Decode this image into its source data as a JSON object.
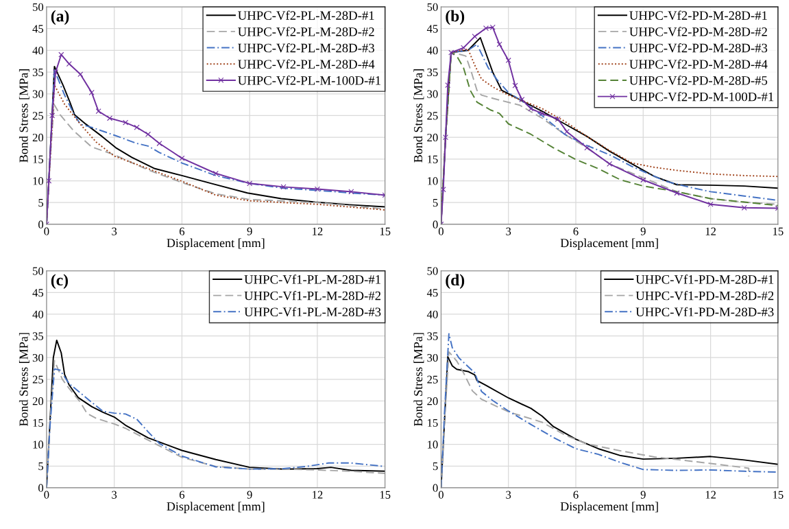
{
  "chart_data": [
    {
      "type": "line",
      "annotations": [
        "(a)"
      ],
      "xlabel": "Displacement [mm]",
      "ylabel": "Bond Stress [MPa]",
      "xlim": [
        0,
        15
      ],
      "ylim": [
        0,
        50
      ],
      "xticks": [
        0,
        3,
        6,
        9,
        12,
        15
      ],
      "yticks": [
        0,
        5,
        10,
        15,
        20,
        25,
        30,
        35,
        40,
        45,
        50
      ],
      "grid": true,
      "legend": "top right",
      "series": [
        {
          "name": "UHPC-Vf2-PL-M-28D-#1",
          "color": "#000000",
          "line_style": "solid",
          "x": [
            0,
            0.15,
            0.35,
            0.73,
            1.04,
            1.24,
            1.75,
            2.46,
            3.07,
            3.78,
            4.8,
            6,
            7.3,
            8.9,
            10.4,
            11.9,
            13.4,
            15
          ],
          "values": [
            0,
            15,
            36.3,
            32,
            28,
            25.2,
            23,
            20.2,
            17.6,
            15.4,
            12.8,
            11.2,
            9.4,
            7.2,
            5.9,
            5.1,
            4.5,
            4.0
          ]
        },
        {
          "name": "UHPC-Vf2-PL-M-28D-#2",
          "color": "#a6a6a6",
          "line_style": "dashed",
          "x": [
            0,
            0.15,
            0.33,
            0.6,
            1.2,
            2,
            3,
            4.5,
            6,
            7.5,
            9,
            12,
            15
          ],
          "values": [
            0,
            14,
            27.6,
            25.2,
            21.5,
            17.8,
            16,
            12.5,
            9.6,
            7,
            5.7,
            5,
            3.5
          ]
        },
        {
          "name": "UHPC-Vf2-PL-M-28D-#3",
          "color": "#4472c4",
          "line_style": "dashdot",
          "x": [
            0,
            0.15,
            0.35,
            0.8,
            1.2,
            1.5,
            2,
            3,
            4,
            4.5,
            5,
            6,
            7.5,
            9,
            10.5,
            12,
            13.5,
            15
          ],
          "values": [
            0,
            15,
            35.5,
            29.7,
            25.5,
            23,
            22.3,
            20.5,
            18.6,
            18,
            16.5,
            14.1,
            11.2,
            9.4,
            8.3,
            7.8,
            7.2,
            6.7
          ]
        },
        {
          "name": "UHPC-Vf2-PL-M-28D-#4",
          "color": "#a0421a",
          "line_style": "dotted",
          "x": [
            0,
            0.15,
            0.35,
            0.8,
            1.5,
            2.2,
            3,
            4.5,
            6,
            7.5,
            9,
            12,
            15
          ],
          "values": [
            0,
            14,
            32,
            27.6,
            23,
            18.9,
            15.7,
            12.8,
            9.9,
            6.7,
            5.4,
            4.6,
            3.3
          ]
        },
        {
          "name": "UHPC-Vf2-PL-M-100D-#1",
          "color": "#7030a0",
          "line_style": "solid",
          "marker": "cross",
          "x": [
            0,
            0.1,
            0.25,
            0.4,
            0.65,
            1,
            1.5,
            2,
            2.3,
            2.8,
            3.5,
            4,
            4.5,
            5,
            6,
            7.5,
            9,
            10.5,
            12,
            13.5,
            15
          ],
          "values": [
            0,
            10,
            25,
            35,
            39,
            36.9,
            34.5,
            30.3,
            26,
            24.4,
            23.4,
            22.3,
            20.7,
            18.6,
            15.2,
            11.7,
            9.4,
            8.6,
            8.1,
            7.5,
            6.7
          ]
        }
      ]
    },
    {
      "type": "line",
      "annotations": [
        "(b)"
      ],
      "xlabel": "Displacement [mm]",
      "ylabel": "Bond Stress [MPa]",
      "xlim": [
        0,
        15
      ],
      "ylim": [
        0,
        50
      ],
      "xticks": [
        0,
        3,
        6,
        9,
        12,
        15
      ],
      "yticks": [
        0,
        5,
        10,
        15,
        20,
        25,
        30,
        35,
        40,
        45,
        50
      ],
      "grid": true,
      "legend": "top right",
      "series": [
        {
          "name": "UHPC-Vf2-PD-M-28D-#1",
          "color": "#000000",
          "line_style": "solid",
          "x": [
            0,
            0.2,
            0.45,
            1.2,
            1.75,
            2.3,
            2.7,
            3.2,
            3.6,
            4.5,
            5.5,
            6.5,
            7.5,
            8.5,
            9.5,
            10.5,
            12,
            13.5,
            15
          ],
          "values": [
            0,
            20,
            39.5,
            40,
            42.9,
            35,
            30.8,
            29.5,
            28.4,
            26,
            23.1,
            20.2,
            16.8,
            13.9,
            11,
            9.1,
            9,
            8.8,
            8.3
          ]
        },
        {
          "name": "UHPC-Vf2-PD-M-28D-#2",
          "color": "#a6a6a6",
          "line_style": "dashed",
          "x": [
            0,
            0.2,
            0.45,
            0.9,
            1.1,
            1.35,
            1.6,
            1.8,
            2.5,
            3.5,
            4.5,
            5.5,
            6.5,
            7.5,
            9,
            10.5,
            12,
            13.5,
            15
          ],
          "values": [
            0,
            20,
            39.5,
            39,
            38.7,
            35,
            30.8,
            29.7,
            28.7,
            27.4,
            24.4,
            20.7,
            17.6,
            13.9,
            10.7,
            7.5,
            5.9,
            5.1,
            4.6
          ]
        },
        {
          "name": "UHPC-Vf2-PD-M-28D-#3",
          "color": "#4472c4",
          "line_style": "dashdot",
          "x": [
            0,
            0.2,
            0.45,
            1.2,
            1.6,
            2.1,
            2.5,
            3,
            3.5,
            4.5,
            5.5,
            6.5,
            7.5,
            8.5,
            10,
            11,
            12,
            13.5,
            15
          ],
          "values": [
            0,
            20,
            39.5,
            40,
            41.4,
            36,
            33.2,
            30.3,
            28.7,
            25,
            20.7,
            18.1,
            16,
            13.3,
            9.9,
            8.6,
            7.5,
            6.5,
            5.5
          ]
        },
        {
          "name": "UHPC-Vf2-PD-M-28D-#4",
          "color": "#a0421a",
          "line_style": "dotted",
          "x": [
            0,
            0.2,
            0.45,
            1.2,
            1.5,
            1.8,
            2.3,
            3,
            3.5,
            4.5,
            5.5,
            6.5,
            7.5,
            8.5,
            9.5,
            10.5,
            12,
            13.5,
            15
          ],
          "values": [
            0,
            20,
            39.5,
            40.3,
            36.6,
            33.4,
            31.6,
            29.7,
            28.7,
            26.6,
            23.7,
            20.2,
            17,
            14.1,
            13.1,
            12.4,
            11.6,
            11.2,
            11
          ]
        },
        {
          "name": "UHPC-Vf2-PD-M-28D-#5",
          "color": "#548235",
          "line_style": "dashed",
          "x": [
            0,
            0.2,
            0.45,
            0.7,
            1,
            1.3,
            1.6,
            2.2,
            2.6,
            3,
            4,
            5,
            6,
            7,
            8,
            9,
            10.5,
            12,
            13.5,
            15
          ],
          "values": [
            0,
            20,
            39.5,
            38.7,
            36,
            30.8,
            28.1,
            26.3,
            25.5,
            23.1,
            20.7,
            17.6,
            14.9,
            12.8,
            10.2,
            8.8,
            7.5,
            5.9,
            5.1,
            4.3
          ]
        },
        {
          "name": "UHPC-Vf2-PD-M-100D-#1",
          "color": "#7030a0",
          "line_style": "solid",
          "marker": "cross",
          "x": [
            0,
            0.1,
            0.2,
            0.3,
            0.45,
            1,
            1.5,
            2,
            2.3,
            2.6,
            3,
            3.3,
            3.6,
            4,
            4.5,
            5.2,
            5.6,
            6.5,
            7.5,
            9,
            10.5,
            12,
            13.5,
            15
          ],
          "values": [
            0,
            8,
            20,
            32,
            39.5,
            40.6,
            43.2,
            45.1,
            45.3,
            41.4,
            37.7,
            31.9,
            28.7,
            26.6,
            25.5,
            24.2,
            21.3,
            17.6,
            13.9,
            10.2,
            7.2,
            4.6,
            3.8,
            3.7
          ]
        }
      ]
    },
    {
      "type": "line",
      "annotations": [
        "(c)"
      ],
      "xlabel": "Displacement [mm]",
      "ylabel": "Bond Stress [MPa]",
      "xlim": [
        0,
        15
      ],
      "ylim": [
        0,
        50
      ],
      "xticks": [
        0,
        3,
        6,
        9,
        12,
        15
      ],
      "yticks": [
        0,
        5,
        10,
        15,
        20,
        25,
        30,
        35,
        40,
        45,
        50
      ],
      "grid": true,
      "legend": "top right",
      "series": [
        {
          "name": "UHPC-Vf1-PL-M-28D-#1",
          "color": "#000000",
          "line_style": "solid",
          "x": [
            0,
            0.3,
            0.45,
            0.65,
            0.8,
            1,
            1.4,
            2,
            2.5,
            3,
            3.5,
            4.5,
            6,
            7.5,
            9,
            10.5,
            12,
            12.6,
            13.5,
            15
          ],
          "values": [
            0,
            30,
            34,
            31.1,
            26.1,
            23.7,
            20.8,
            18.7,
            17.4,
            16.3,
            14.4,
            11.5,
            8.6,
            6.5,
            4.7,
            4.3,
            4.4,
            4.7,
            4,
            3.8
          ]
        },
        {
          "name": "UHPC-Vf1-PL-M-28D-#2",
          "color": "#a6a6a6",
          "line_style": "dashed",
          "x": [
            0,
            0.15,
            0.35,
            0.7,
            1,
            1.5,
            1.8,
            2.2,
            3,
            3.5,
            4.5,
            6,
            7.5,
            9,
            10.5,
            12,
            13.5,
            15
          ],
          "values": [
            0,
            15,
            29.3,
            25,
            22.9,
            19.7,
            17.1,
            16,
            14.7,
            13.7,
            11,
            7,
            4.9,
            4.3,
            4.3,
            4.1,
            3.8,
            3.3
          ]
        },
        {
          "name": "UHPC-Vf1-PL-M-28D-#3",
          "color": "#4472c4",
          "line_style": "dashdot",
          "x": [
            0,
            0.15,
            0.35,
            0.6,
            1,
            2,
            2.5,
            3,
            3.5,
            4,
            4.5,
            5,
            6,
            7.5,
            9,
            10.5,
            11.5,
            12.5,
            13.5,
            15
          ],
          "values": [
            0,
            14,
            27.4,
            27.1,
            24,
            19.7,
            17.6,
            17.2,
            17,
            15.8,
            12.9,
            10.2,
            7.3,
            4.8,
            4.3,
            4.4,
            4.9,
            5.7,
            5.7,
            4.9
          ]
        }
      ]
    },
    {
      "type": "line",
      "annotations": [
        "(d)"
      ],
      "xlabel": "Displacement [mm]",
      "ylabel": "Bond Stress [MPa]",
      "xlim": [
        0,
        15
      ],
      "ylim": [
        0,
        50
      ],
      "xticks": [
        0,
        3,
        6,
        9,
        12,
        15
      ],
      "yticks": [
        0,
        5,
        10,
        15,
        20,
        25,
        30,
        35,
        40,
        45,
        50
      ],
      "grid": true,
      "legend": "top right",
      "series": [
        {
          "name": "UHPC-Vf1-PD-M-28D-#1",
          "color": "#000000",
          "line_style": "solid",
          "x": [
            0,
            0.15,
            0.3,
            0.5,
            0.7,
            1.2,
            1.5,
            1.6,
            2,
            3,
            4,
            4.5,
            5,
            6,
            7,
            8,
            9,
            10.5,
            12,
            13.5,
            15
          ],
          "values": [
            0,
            15,
            30.2,
            28.1,
            27.3,
            26.8,
            26,
            24.7,
            23.6,
            20.7,
            18.3,
            16.5,
            14.1,
            11.2,
            9,
            7.4,
            6.6,
            6.8,
            7.2,
            6.4,
            5.4
          ]
        },
        {
          "name": "UHPC-Vf1-PD-M-28D-#2",
          "color": "#a6a6a6",
          "line_style": "dashed",
          "x": [
            0,
            0.15,
            0.35,
            0.7,
            1,
            1.4,
            1.8,
            3,
            4.5,
            5.5,
            6.5,
            8,
            9.5,
            12,
            13.7,
            13.7
          ],
          "values": [
            0,
            15,
            31.3,
            29.2,
            26.5,
            22.3,
            20.4,
            17.5,
            15.1,
            12.2,
            10.1,
            8.5,
            7.1,
            5.6,
            4.5,
            2.6
          ]
        },
        {
          "name": "UHPC-Vf1-PD-M-28D-#3",
          "color": "#4472c4",
          "line_style": "dashdot",
          "x": [
            0,
            0.15,
            0.35,
            0.5,
            0.8,
            1.5,
            1.8,
            2.3,
            3,
            4,
            5,
            6,
            7,
            8,
            9,
            10.5,
            12,
            13.5,
            15
          ],
          "values": [
            0,
            17,
            35.5,
            32.3,
            29.9,
            26.5,
            22.2,
            20.1,
            17.7,
            14.6,
            11.6,
            9,
            7.7,
            5.8,
            4.2,
            4,
            4.1,
            3.8,
            3.6
          ]
        }
      ]
    }
  ]
}
